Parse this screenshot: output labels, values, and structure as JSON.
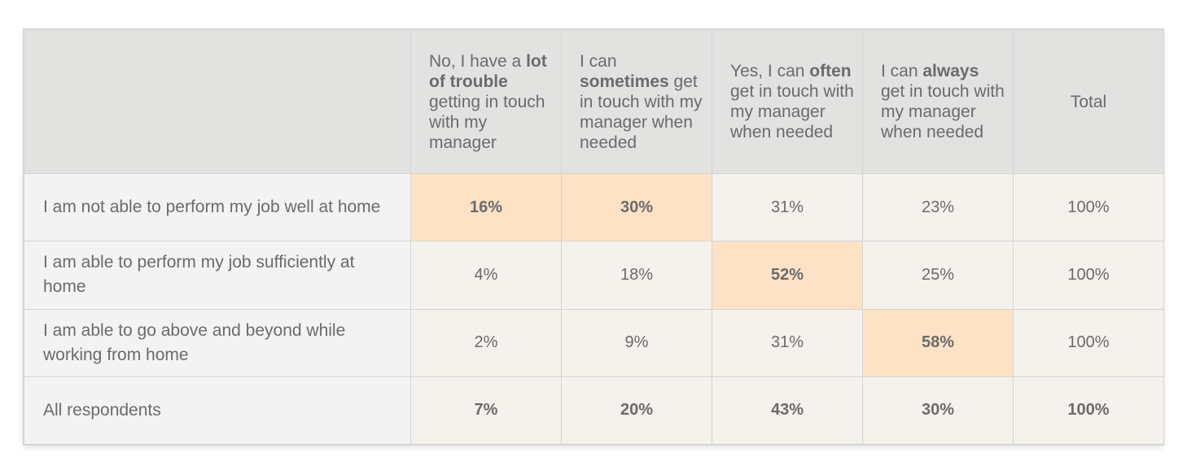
{
  "chart_data": {
    "type": "table",
    "columns": [
      {
        "pre": "No, I have a ",
        "bold": "lot of trouble",
        "post": " getting in touch with my manager"
      },
      {
        "pre": "I can ",
        "bold": "sometimes",
        "post": " get in touch with my manager when needed"
      },
      {
        "pre": "Yes, I can ",
        "bold": "often",
        "post": " get in touch with my manager when needed"
      },
      {
        "pre": "I can ",
        "bold": "always",
        "post": " get in touch with my manager when needed"
      },
      {
        "pre": "Total",
        "bold": "",
        "post": ""
      }
    ],
    "rows": [
      {
        "label": "I am not able to perform my job well at home",
        "values": [
          "16%",
          "30%",
          "31%",
          "23%",
          "100%"
        ],
        "highlight": [
          0,
          1
        ]
      },
      {
        "label": "I am able to perform my job sufficiently at home",
        "values": [
          "4%",
          "18%",
          "52%",
          "25%",
          "100%"
        ],
        "highlight": [
          2
        ]
      },
      {
        "label": "I am able to go above and beyond while working from home",
        "values": [
          "2%",
          "9%",
          "31%",
          "58%",
          "100%"
        ],
        "highlight": [
          3
        ]
      },
      {
        "label": "All respondents",
        "values": [
          "7%",
          "20%",
          "43%",
          "30%",
          "100%"
        ],
        "highlight": []
      }
    ],
    "colors": {
      "header_bg": "#e2e2e1",
      "cell_bg": "#f5f1ec",
      "label_bg": "#f3f3f3",
      "highlight_bg": "#fde2c6",
      "text": "#6b6b6b"
    }
  }
}
